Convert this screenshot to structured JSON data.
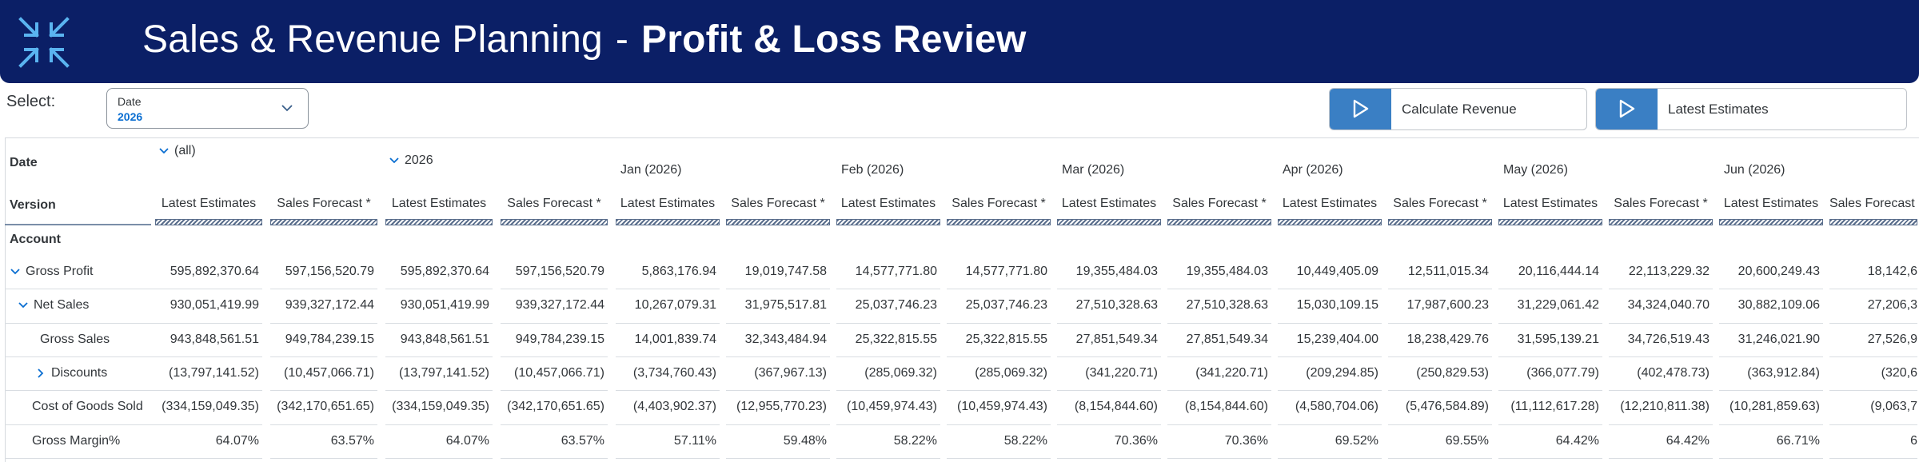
{
  "header": {
    "title_part1": "Sales & Revenue Planning",
    "title_sep": "-",
    "title_part2": "Profit & Loss Review"
  },
  "filter": {
    "select_label": "Select:",
    "date_label": "Date",
    "date_value": "2026"
  },
  "actions": {
    "calculate_label": "Calculate Revenue",
    "latest_label": "Latest Estimates"
  },
  "grid": {
    "row_dims": {
      "date": "Date",
      "version": "Version",
      "account": "Account"
    },
    "col_groups": [
      "(all)",
      "2026",
      "Jan (2026)",
      "Feb (2026)",
      "Mar (2026)",
      "Apr (2026)",
      "May (2026)",
      "Jun (2026)"
    ],
    "versions": [
      "Latest Estimates",
      "Sales Forecast *"
    ],
    "accounts": [
      {
        "label": "Gross Profit",
        "level": 0,
        "expander": "expanded",
        "values": [
          "595,892,370.64",
          "597,156,520.79",
          "595,892,370.64",
          "597,156,520.79",
          "5,863,176.94",
          "19,019,747.58",
          "14,577,771.80",
          "14,577,771.80",
          "19,355,484.03",
          "19,355,484.03",
          "10,449,405.09",
          "12,511,015.34",
          "20,116,444.14",
          "22,113,229.32",
          "20,600,249.43",
          "18,142,6"
        ]
      },
      {
        "label": "Net Sales",
        "level": 1,
        "expander": "expanded",
        "values": [
          "930,051,419.99",
          "939,327,172.44",
          "930,051,419.99",
          "939,327,172.44",
          "10,267,079.31",
          "31,975,517.81",
          "25,037,746.23",
          "25,037,746.23",
          "27,510,328.63",
          "27,510,328.63",
          "15,030,109.15",
          "17,987,600.23",
          "31,229,061.42",
          "34,324,040.70",
          "30,882,109.06",
          "27,206,3"
        ]
      },
      {
        "label": "Gross Sales",
        "level": 2,
        "expander": "none",
        "values": [
          "943,848,561.51",
          "949,784,239.15",
          "943,848,561.51",
          "949,784,239.15",
          "14,001,839.74",
          "32,343,484.94",
          "25,322,815.55",
          "25,322,815.55",
          "27,851,549.34",
          "27,851,549.34",
          "15,239,404.00",
          "18,238,429.76",
          "31,595,139.21",
          "34,726,519.43",
          "31,246,021.90",
          "27,526,9"
        ]
      },
      {
        "label": "Discounts",
        "level": 2,
        "expander": "collapsed",
        "values": [
          "(13,797,141.52)",
          "(10,457,066.71)",
          "(13,797,141.52)",
          "(10,457,066.71)",
          "(3,734,760.43)",
          "(367,967.13)",
          "(285,069.32)",
          "(285,069.32)",
          "(341,220.71)",
          "(341,220.71)",
          "(209,294.85)",
          "(250,829.53)",
          "(366,077.79)",
          "(402,478.73)",
          "(363,912.84)",
          "(320,6"
        ]
      },
      {
        "label": "Cost of Goods Sold",
        "level": 1.5,
        "expander": "none",
        "values": [
          "(334,159,049.35)",
          "(342,170,651.65)",
          "(334,159,049.35)",
          "(342,170,651.65)",
          "(4,403,902.37)",
          "(12,955,770.23)",
          "(10,459,974.43)",
          "(10,459,974.43)",
          "(8,154,844.60)",
          "(8,154,844.60)",
          "(4,580,704.06)",
          "(5,476,584.89)",
          "(11,112,617.28)",
          "(12,210,811.38)",
          "(10,281,859.63)",
          "(9,063,7"
        ]
      },
      {
        "label": "Gross Margin%",
        "level": 1.5,
        "expander": "none",
        "values": [
          "64.07%",
          "63.57%",
          "64.07%",
          "63.57%",
          "57.11%",
          "59.48%",
          "58.22%",
          "58.22%",
          "70.36%",
          "70.36%",
          "69.52%",
          "69.55%",
          "64.42%",
          "64.42%",
          "66.71%",
          "6"
        ]
      }
    ]
  },
  "colors": {
    "header_bg": "#0b1f66",
    "accent": "#3a7fc4",
    "link": "#0a6ed1"
  },
  "icons": {
    "logo": "arrows-inward-logo",
    "play": "play-icon",
    "chevron": "chevron-down-icon"
  }
}
